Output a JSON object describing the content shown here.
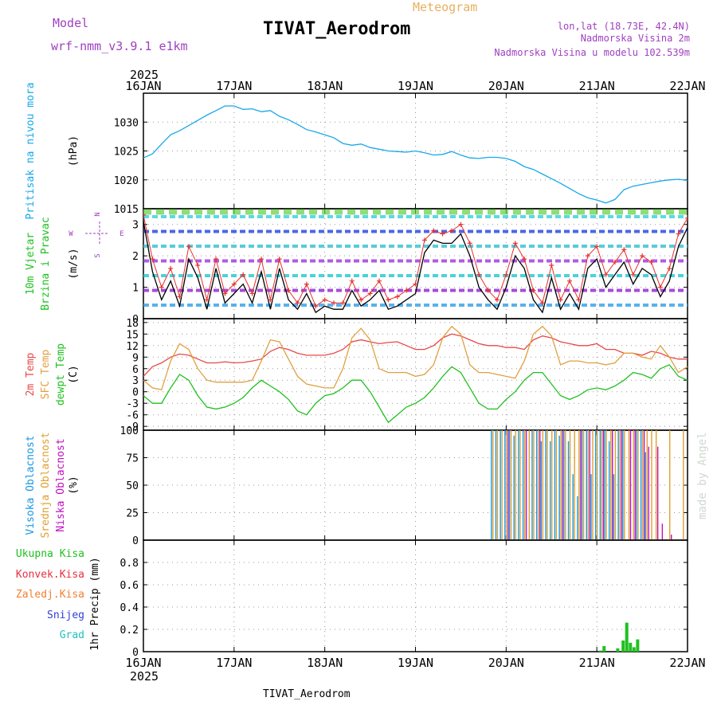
{
  "header": {
    "model_label": "Model",
    "model_name": "wrf-nmm_v3.9.1  e1km",
    "subtitle": "Meteogram",
    "title": "TIVAT_Aerodrom",
    "lonlat": "lon,lat (18.73E, 42.4N)",
    "elev": "Nadmorska Visina 2m",
    "elev_model": "Nadmorska Visina u modelu 102.539m"
  },
  "footer": {
    "station": "TIVAT_Aerodrom",
    "credit": "made by Angel"
  },
  "colors": {
    "pressure": "#18a8e8",
    "wind_speed": "#000000",
    "gust": "#e83030",
    "t2m": "#e84848",
    "tsfc": "#e0a040",
    "dewpt": "#20c020",
    "cloud_high": "#1898e0",
    "cloud_mid": "#e0a030",
    "cloud_low": "#c010c0",
    "precip": "#20c020",
    "grid": "#999999"
  },
  "chart_data": [
    {
      "type": "line",
      "title": "",
      "ylabel_lines": [
        "Pritisak na nivou mora",
        "(hPa)"
      ],
      "year_label": "2025",
      "x_ticks": [
        "16JAN",
        "17JAN",
        "18JAN",
        "19JAN",
        "20JAN",
        "21JAN",
        "22JAN"
      ],
      "ylim": [
        1015,
        1035
      ],
      "y_ticks": [
        1015,
        1020,
        1025,
        1030
      ],
      "x": [
        0,
        0.1,
        0.2,
        0.3,
        0.4,
        0.5,
        0.6,
        0.7,
        0.8,
        0.9,
        1.0,
        1.1,
        1.2,
        1.3,
        1.4,
        1.5,
        1.6,
        1.7,
        1.8,
        1.9,
        2.0,
        2.1,
        2.2,
        2.3,
        2.4,
        2.5,
        2.6,
        2.7,
        2.8,
        2.9,
        3.0,
        3.1,
        3.2,
        3.3,
        3.4,
        3.5,
        3.6,
        3.7,
        3.8,
        3.9,
        4.0,
        4.1,
        4.2,
        4.3,
        4.4,
        4.5,
        4.6,
        4.7,
        4.8,
        4.9,
        5.0,
        5.1,
        5.2,
        5.3,
        5.4,
        5.5,
        5.6,
        5.7,
        5.8,
        5.9,
        6.0
      ],
      "series": [
        {
          "values": [
            1023.8,
            1024.5,
            1026.2,
            1027.8,
            1028.5,
            1029.4,
            1030.3,
            1031.2,
            1032.0,
            1032.8,
            1032.8,
            1032.2,
            1032.3,
            1031.8,
            1032.0,
            1031.0,
            1030.4,
            1029.6,
            1028.7,
            1028.3,
            1027.8,
            1027.3,
            1026.3,
            1026.0,
            1026.2,
            1025.6,
            1025.3,
            1025.0,
            1024.9,
            1024.8,
            1025.0,
            1024.7,
            1024.3,
            1024.4,
            1024.9,
            1024.3,
            1023.8,
            1023.7,
            1023.9,
            1023.9,
            1023.7,
            1023.2,
            1022.3,
            1021.8,
            1021.0,
            1020.2,
            1019.4,
            1018.5,
            1017.6,
            1016.9,
            1016.5,
            1016.0,
            1016.6,
            1018.3,
            1018.9,
            1019.2,
            1019.5,
            1019.8,
            1020.0,
            1020.1,
            1019.9
          ]
        }
      ]
    },
    {
      "type": "line",
      "title": "",
      "ylabel_lines": [
        "10m Vjetar",
        "Brzina i Pravac",
        "(m/s)"
      ],
      "compass_labels": [
        "N",
        "W",
        "E",
        "S"
      ],
      "ylim": [
        0,
        3.5
      ],
      "y_ticks": [
        0,
        1,
        2,
        3
      ],
      "x": [
        0,
        0.1,
        0.2,
        0.3,
        0.4,
        0.5,
        0.6,
        0.7,
        0.8,
        0.9,
        1.0,
        1.1,
        1.2,
        1.3,
        1.4,
        1.5,
        1.6,
        1.7,
        1.8,
        1.9,
        2.0,
        2.1,
        2.2,
        2.3,
        2.4,
        2.5,
        2.6,
        2.7,
        2.8,
        2.9,
        3.0,
        3.1,
        3.2,
        3.3,
        3.4,
        3.5,
        3.6,
        3.7,
        3.8,
        3.9,
        4.0,
        4.1,
        4.2,
        4.3,
        4.4,
        4.5,
        4.6,
        4.7,
        4.8,
        4.9,
        5.0,
        5.1,
        5.2,
        5.3,
        5.4,
        5.5,
        5.6,
        5.7,
        5.8,
        5.9,
        6.0
      ],
      "series": [
        {
          "values": [
            3.1,
            1.5,
            0.6,
            1.2,
            0.4,
            1.9,
            1.3,
            0.3,
            1.6,
            0.5,
            0.8,
            1.1,
            0.5,
            1.5,
            0.3,
            1.6,
            0.6,
            0.3,
            0.8,
            0.2,
            0.4,
            0.3,
            0.3,
            0.9,
            0.4,
            0.6,
            0.9,
            0.3,
            0.4,
            0.6,
            0.8,
            2.1,
            2.5,
            2.4,
            2.4,
            2.7,
            2.0,
            1.0,
            0.6,
            0.3,
            1.0,
            2.0,
            1.6,
            0.6,
            0.2,
            1.3,
            0.3,
            0.8,
            0.3,
            1.6,
            1.9,
            1.0,
            1.4,
            1.8,
            1.1,
            1.6,
            1.4,
            0.7,
            1.2,
            2.3,
            2.9
          ]
        },
        {
          "values": [
            3.3,
            1.9,
            1.0,
            1.6,
            0.7,
            2.3,
            1.7,
            0.6,
            1.9,
            0.8,
            1.1,
            1.4,
            0.8,
            1.9,
            0.6,
            1.9,
            0.9,
            0.5,
            1.1,
            0.4,
            0.6,
            0.5,
            0.5,
            1.2,
            0.6,
            0.8,
            1.2,
            0.6,
            0.7,
            0.9,
            1.1,
            2.5,
            2.8,
            2.7,
            2.8,
            3.0,
            2.4,
            1.4,
            0.9,
            0.6,
            1.4,
            2.4,
            1.9,
            0.9,
            0.5,
            1.7,
            0.6,
            1.2,
            0.6,
            2.0,
            2.3,
            1.4,
            1.8,
            2.2,
            1.4,
            2.0,
            1.8,
            1.0,
            1.6,
            2.7,
            3.2
          ]
        }
      ]
    },
    {
      "type": "line",
      "title": "",
      "ylabel_lines": [
        "2m Temp",
        "SFC Temp",
        "dewpt Temp",
        "(C)"
      ],
      "ylim": [
        -10,
        19
      ],
      "y_ticks": [
        -9,
        -6,
        -3,
        0,
        3,
        6,
        9,
        12,
        15,
        18
      ],
      "x": [
        0,
        0.1,
        0.2,
        0.3,
        0.4,
        0.5,
        0.6,
        0.7,
        0.8,
        0.9,
        1.0,
        1.1,
        1.2,
        1.3,
        1.4,
        1.5,
        1.6,
        1.7,
        1.8,
        1.9,
        2.0,
        2.1,
        2.2,
        2.3,
        2.4,
        2.5,
        2.6,
        2.7,
        2.8,
        2.9,
        3.0,
        3.1,
        3.2,
        3.3,
        3.4,
        3.5,
        3.6,
        3.7,
        3.8,
        3.9,
        4.0,
        4.1,
        4.2,
        4.3,
        4.4,
        4.5,
        4.6,
        4.7,
        4.8,
        4.9,
        5.0,
        5.1,
        5.2,
        5.3,
        5.4,
        5.5,
        5.6,
        5.7,
        5.8,
        5.9,
        6.0
      ],
      "series": [
        {
          "values": [
            4.0,
            6.5,
            7.5,
            9.0,
            9.8,
            9.5,
            8.5,
            7.5,
            7.5,
            7.8,
            7.5,
            7.6,
            8.0,
            8.5,
            10.5,
            11.5,
            11.0,
            10.0,
            9.5,
            9.5,
            9.5,
            10.0,
            11.0,
            13.0,
            13.5,
            13.0,
            12.5,
            12.8,
            13.0,
            12.0,
            11.0,
            11.0,
            12.0,
            14.0,
            15.0,
            14.5,
            13.5,
            12.5,
            12.0,
            12.0,
            11.5,
            11.5,
            11.0,
            13.5,
            14.5,
            14.0,
            13.0,
            12.5,
            12.0,
            12.0,
            12.5,
            11.0,
            11.0,
            10.0,
            10.0,
            9.5,
            10.5,
            10.0,
            9.0,
            8.5,
            8.5
          ]
        },
        {
          "values": [
            3.0,
            1.0,
            0.5,
            8.0,
            12.5,
            11.0,
            6.0,
            3.0,
            2.5,
            2.5,
            2.5,
            2.5,
            3.0,
            8.0,
            13.5,
            13.0,
            8.5,
            4.0,
            2.0,
            1.5,
            1.0,
            1.0,
            6.0,
            14.0,
            16.5,
            13.5,
            6.0,
            5.0,
            5.0,
            5.0,
            4.0,
            4.5,
            7.0,
            14.0,
            17.0,
            15.0,
            7.0,
            5.0,
            5.0,
            4.5,
            4.0,
            3.5,
            8.0,
            15.0,
            17.0,
            14.5,
            7.0,
            8.0,
            8.0,
            7.5,
            7.5,
            7.0,
            7.5,
            10.0,
            10.0,
            9.0,
            8.5,
            12.0,
            9.0,
            5.0,
            6.5
          ]
        },
        {
          "values": [
            -1.0,
            -3.0,
            -3.0,
            1.0,
            4.5,
            3.0,
            -1.0,
            -4.0,
            -4.5,
            -4.0,
            -3.0,
            -1.5,
            1.0,
            3.0,
            1.5,
            0.0,
            -2.0,
            -5.0,
            -6.0,
            -3.0,
            -1.0,
            -0.5,
            1.0,
            3.0,
            3.0,
            0.0,
            -4.0,
            -8.0,
            -6.0,
            -4.0,
            -3.0,
            -1.5,
            1.0,
            4.0,
            6.5,
            5.0,
            1.0,
            -3.0,
            -4.5,
            -4.5,
            -2.0,
            0.0,
            3.0,
            5.0,
            5.0,
            2.0,
            -1.0,
            -2.0,
            -1.0,
            0.5,
            1.0,
            0.5,
            1.5,
            3.0,
            5.0,
            4.5,
            3.5,
            6.0,
            7.0,
            4.0,
            3.0
          ]
        }
      ]
    },
    {
      "type": "bar",
      "title": "",
      "ylabel_lines": [
        "Visoka Oblacnost",
        "Srednja Oblacnost",
        "Niska Oblacnost",
        "(%)"
      ],
      "ylim": [
        0,
        100
      ],
      "y_ticks": [
        0,
        25,
        50,
        75,
        100
      ],
      "x": [
        3.85,
        3.9,
        3.95,
        4.0,
        4.05,
        4.1,
        4.15,
        4.2,
        4.25,
        4.3,
        4.35,
        4.4,
        4.45,
        4.5,
        4.55,
        4.6,
        4.65,
        4.7,
        4.75,
        4.8,
        4.85,
        4.9,
        4.95,
        5.0,
        5.05,
        5.1,
        5.15,
        5.2,
        5.25,
        5.3,
        5.35,
        5.4,
        5.45,
        5.5,
        5.55,
        5.6,
        5.65,
        5.7,
        5.75,
        5.8,
        5.85,
        5.9,
        5.95
      ],
      "series": [
        {
          "name": "Visoka Oblacnost",
          "values": [
            100,
            100,
            100,
            100,
            100,
            95,
            100,
            100,
            0,
            100,
            100,
            90,
            100,
            90,
            100,
            95,
            100,
            90,
            60,
            40,
            100,
            100,
            60,
            100,
            100,
            100,
            90,
            60,
            100,
            100,
            0,
            0,
            100,
            100,
            80,
            0,
            0,
            0,
            0,
            0,
            0,
            0,
            0
          ]
        },
        {
          "name": "Srednja Oblacnost",
          "values": [
            100,
            100,
            100,
            100,
            100,
            100,
            100,
            100,
            100,
            100,
            100,
            100,
            100,
            100,
            100,
            100,
            100,
            100,
            100,
            100,
            100,
            100,
            100,
            100,
            100,
            100,
            100,
            100,
            100,
            100,
            100,
            100,
            100,
            100,
            100,
            100,
            100,
            0,
            0,
            100,
            0,
            0,
            100
          ]
        },
        {
          "name": "Niska Oblacnost",
          "values": [
            0,
            0,
            0,
            100,
            0,
            0,
            0,
            100,
            0,
            0,
            100,
            0,
            0,
            0,
            0,
            100,
            0,
            0,
            0,
            100,
            0,
            100,
            0,
            0,
            100,
            0,
            100,
            0,
            100,
            0,
            100,
            100,
            0,
            100,
            85,
            0,
            85,
            15,
            0,
            5,
            0,
            0,
            0
          ]
        }
      ]
    },
    {
      "type": "bar",
      "title": "",
      "ylabel_lines": [
        "1hr Precip (mm)"
      ],
      "legend": [
        "Ukupna Kisa",
        "Konvek.Kisa",
        "Zaledj.Kisa",
        "Snijeg",
        "Grad"
      ],
      "ylim": [
        0,
        1.0
      ],
      "y_ticks": [
        0,
        0.2,
        0.4,
        0.6,
        0.8
      ],
      "x_ticks": [
        "16JAN",
        "17JAN",
        "18JAN",
        "19JAN",
        "20JAN",
        "21JAN",
        "22JAN"
      ],
      "year_label": "2025",
      "x": [
        5.04,
        5.08,
        5.23,
        5.29,
        5.33,
        5.37,
        5.41,
        5.45
      ],
      "series": [
        {
          "name": "Ukupna Kisa",
          "values": [
            0.01,
            0.05,
            0.03,
            0.1,
            0.26,
            0.08,
            0.04,
            0.11
          ]
        }
      ]
    }
  ]
}
